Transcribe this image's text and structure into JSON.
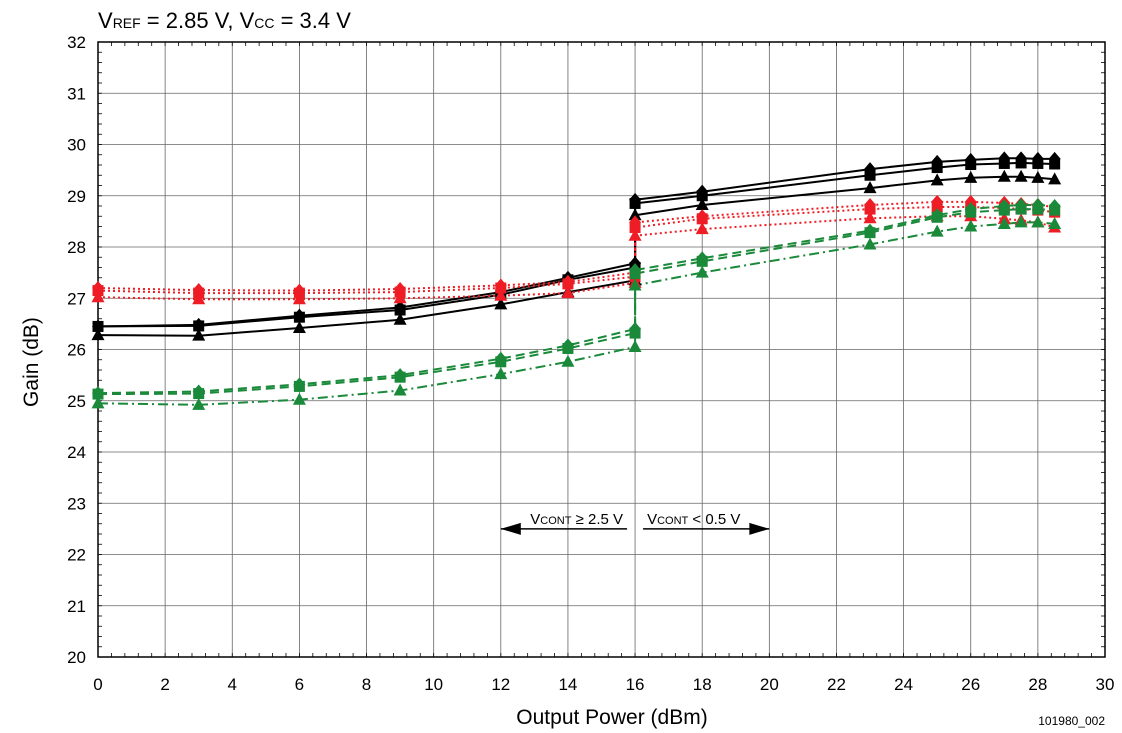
{
  "chart_data": {
    "type": "line",
    "title": {
      "parts": [
        {
          "text": "V",
          "sub": false
        },
        {
          "text": "REF",
          "sub": true
        },
        {
          "text": " = 2.85 V, V",
          "sub": false
        },
        {
          "text": "CC",
          "sub": true
        },
        {
          "text": " = 3.4 V",
          "sub": false
        }
      ]
    },
    "xlabel": "Output Power (dBm)",
    "ylabel": "Gain (dB)",
    "xlim": [
      0,
      30
    ],
    "ylim": [
      20,
      32
    ],
    "xticks": [
      0,
      2,
      4,
      6,
      8,
      10,
      12,
      14,
      16,
      18,
      20,
      22,
      24,
      26,
      28,
      30
    ],
    "yticks": [
      20,
      21,
      22,
      23,
      24,
      25,
      26,
      27,
      28,
      29,
      30,
      31,
      32
    ],
    "grid": true,
    "colors": {
      "black": "#000000",
      "red": "#ee1c24",
      "green": "#1a8a3a"
    },
    "series": [
      {
        "color": "#000000",
        "dash": "solid",
        "marker": "diamond",
        "x": [
          0,
          3,
          6,
          9,
          12,
          14,
          16,
          16,
          18,
          23,
          25,
          26,
          27,
          27.5,
          28,
          28.5
        ],
        "y": [
          26.45,
          26.48,
          26.66,
          26.82,
          27.12,
          27.4,
          27.68,
          28.92,
          29.08,
          29.52,
          29.66,
          29.7,
          29.73,
          29.73,
          29.72,
          29.72
        ]
      },
      {
        "color": "#000000",
        "dash": "solid",
        "marker": "square",
        "x": [
          0,
          3,
          6,
          9,
          12,
          14,
          16,
          16,
          18,
          23,
          25,
          26,
          27,
          27.5,
          28,
          28.5
        ],
        "y": [
          26.45,
          26.46,
          26.63,
          26.77,
          27.07,
          27.36,
          27.6,
          28.85,
          29.0,
          29.4,
          29.55,
          29.61,
          29.63,
          29.64,
          29.63,
          29.62
        ]
      },
      {
        "color": "#000000",
        "dash": "solid",
        "marker": "triangle",
        "x": [
          0,
          3,
          6,
          9,
          12,
          14,
          16,
          16,
          18,
          23,
          25,
          26,
          27,
          27.5,
          28,
          28.5
        ],
        "y": [
          26.28,
          26.27,
          26.42,
          26.58,
          26.88,
          27.12,
          27.35,
          28.62,
          28.82,
          29.15,
          29.3,
          29.35,
          29.37,
          29.37,
          29.35,
          29.32
        ]
      },
      {
        "color": "#ee1c24",
        "dash": "dotted",
        "marker": "diamond",
        "x": [
          0,
          3,
          6,
          9,
          12,
          14,
          16,
          16,
          18,
          23,
          25,
          26,
          27,
          27.5,
          28,
          28.5
        ],
        "y": [
          27.2,
          27.16,
          27.15,
          27.18,
          27.25,
          27.32,
          27.5,
          28.48,
          28.6,
          28.82,
          28.88,
          28.88,
          28.86,
          28.84,
          28.82,
          28.78
        ]
      },
      {
        "color": "#ee1c24",
        "dash": "dotted",
        "marker": "square",
        "x": [
          0,
          3,
          6,
          9,
          12,
          14,
          16,
          16,
          18,
          23,
          25,
          26,
          27,
          27.5,
          28,
          28.5
        ],
        "y": [
          27.15,
          27.1,
          27.1,
          27.12,
          27.2,
          27.28,
          27.42,
          28.38,
          28.55,
          28.74,
          28.78,
          28.78,
          28.76,
          28.74,
          28.72,
          28.68
        ]
      },
      {
        "color": "#ee1c24",
        "dash": "dotted",
        "marker": "triangle",
        "x": [
          0,
          3,
          6,
          9,
          12,
          14,
          16,
          16,
          18,
          23,
          25,
          26,
          27,
          27.5,
          28,
          28.5
        ],
        "y": [
          27.02,
          26.98,
          26.98,
          27.0,
          27.05,
          27.1,
          27.3,
          28.22,
          28.35,
          28.56,
          28.6,
          28.6,
          28.55,
          28.52,
          28.48,
          28.38
        ]
      },
      {
        "color": "#1a8a3a",
        "dash": "dashed",
        "marker": "diamond",
        "x": [
          0,
          3,
          6,
          9,
          12,
          14,
          16,
          16,
          18,
          23,
          25,
          26,
          27,
          27.5,
          28,
          28.5
        ],
        "y": [
          25.15,
          25.18,
          25.32,
          25.5,
          25.82,
          26.08,
          26.4,
          27.55,
          27.78,
          28.32,
          28.62,
          28.74,
          28.8,
          28.82,
          28.82,
          28.8
        ]
      },
      {
        "color": "#1a8a3a",
        "dash": "dashed",
        "marker": "square",
        "x": [
          0,
          3,
          6,
          9,
          12,
          14,
          16,
          16,
          18,
          23,
          25,
          26,
          27,
          27.5,
          28,
          28.5
        ],
        "y": [
          25.13,
          25.14,
          25.28,
          25.46,
          25.76,
          26.02,
          26.32,
          27.48,
          27.72,
          28.28,
          28.58,
          28.68,
          28.72,
          28.74,
          28.74,
          28.72
        ]
      },
      {
        "color": "#1a8a3a",
        "dash": "dashdot",
        "marker": "triangle",
        "x": [
          0,
          3,
          6,
          9,
          12,
          14,
          16,
          16,
          18,
          23,
          25,
          26,
          27,
          27.5,
          28,
          28.5
        ],
        "y": [
          24.95,
          24.92,
          25.02,
          25.2,
          25.52,
          25.76,
          26.05,
          27.25,
          27.5,
          28.05,
          28.3,
          28.4,
          28.45,
          28.48,
          28.48,
          28.45
        ]
      }
    ],
    "annotations": [
      {
        "direction": "left",
        "x_from": 16,
        "x_to": 12,
        "y": 22.5,
        "parts": [
          {
            "text": "V",
            "sub": false
          },
          {
            "text": "CONT",
            "sub": true
          },
          {
            "text": " ≥ 2.5 V",
            "sub": false
          }
        ]
      },
      {
        "direction": "right",
        "x_from": 16,
        "x_to": 20,
        "y": 22.5,
        "parts": [
          {
            "text": "V",
            "sub": false
          },
          {
            "text": "CONT",
            "sub": true
          },
          {
            "text": " < 0.5 V",
            "sub": false
          }
        ]
      }
    ],
    "figure_id": "101980_002"
  }
}
